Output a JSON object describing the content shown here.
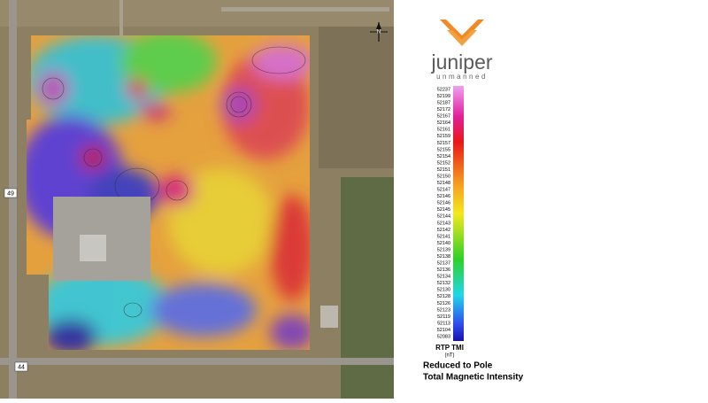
{
  "logo": {
    "name": "juniper",
    "tagline": "unmanned"
  },
  "map": {
    "north_label": "N",
    "road_labels": [
      "49",
      "44"
    ]
  },
  "legend": {
    "title": "RTP TMI",
    "unit": "(nT)",
    "levels": [
      52237,
      52199,
      52187,
      52172,
      52167,
      52164,
      52161,
      52159,
      52157,
      52155,
      52154,
      52152,
      52151,
      52150,
      52148,
      52147,
      52146,
      52146,
      52145,
      52144,
      52143,
      52142,
      52141,
      52140,
      52139,
      52138,
      52137,
      52136,
      52134,
      52132,
      52130,
      52128,
      52126,
      52123,
      52119,
      52113,
      52104,
      52083
    ]
  },
  "caption": [
    "Reduced to Pole",
    "Total Magnetic Intensity"
  ]
}
